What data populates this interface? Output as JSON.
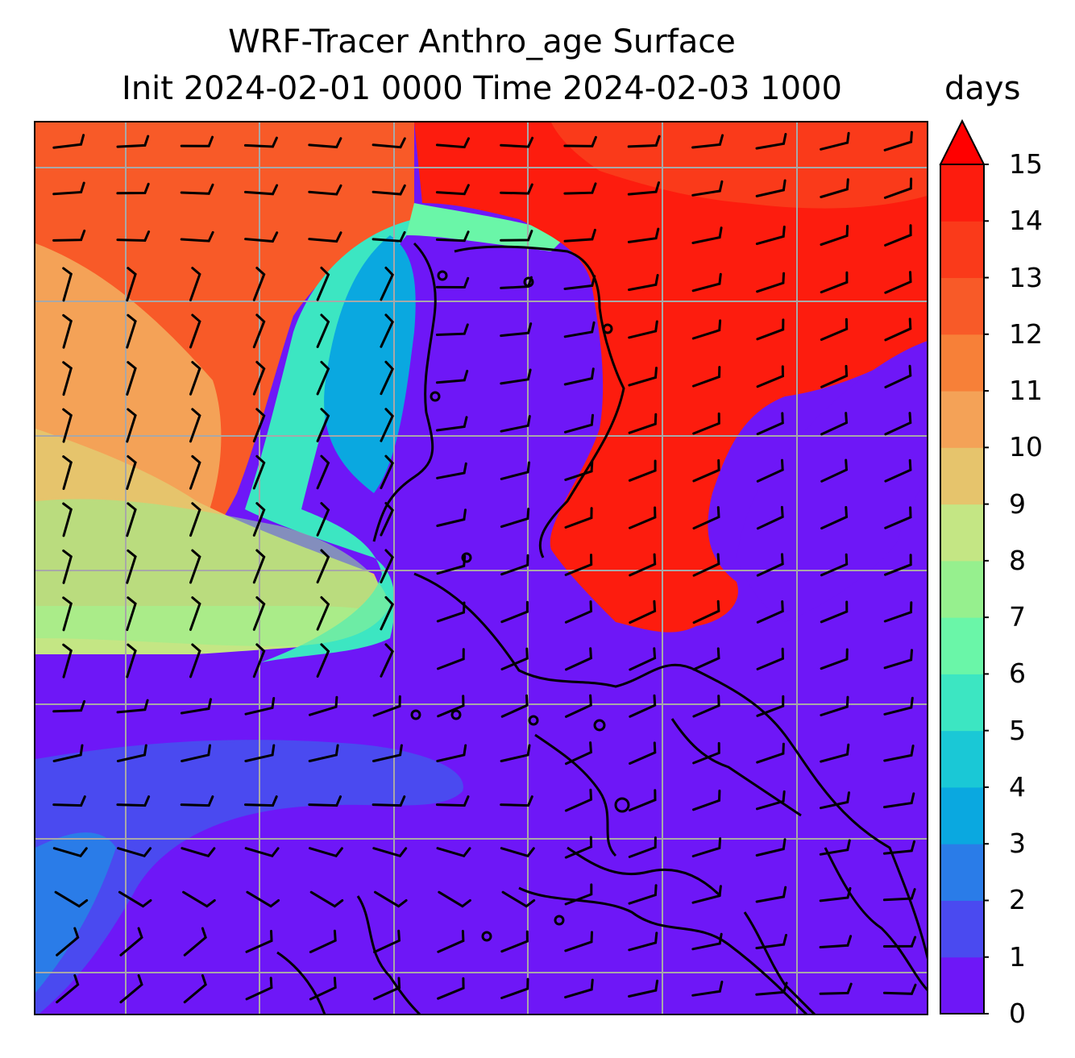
{
  "title": {
    "line1": "WRF-Tracer Anthro_age Surface",
    "line2": "Init 2024-02-01 0000 Time 2024-02-03 1000"
  },
  "units": "days",
  "colorbar": {
    "ticks": [
      "0",
      "1",
      "2",
      "3",
      "4",
      "5",
      "6",
      "7",
      "8",
      "9",
      "10",
      "11",
      "12",
      "13",
      "14",
      "15"
    ],
    "colors": [
      "#6e17f7",
      "#4a4af0",
      "#2a7ce8",
      "#0aa8e0",
      "#1ac8d6",
      "#3ce6c2",
      "#6af6a8",
      "#96f08e",
      "#c4e684",
      "#e6c46c",
      "#f4a257",
      "#f78038",
      "#f85a28",
      "#fa3a1a",
      "#fd1c0e"
    ],
    "extend": "max",
    "extend_color": "#ff0000",
    "min": 0,
    "max": 15
  },
  "map": {
    "gridlines": true,
    "coastline": true,
    "wind_barbs": true
  }
}
